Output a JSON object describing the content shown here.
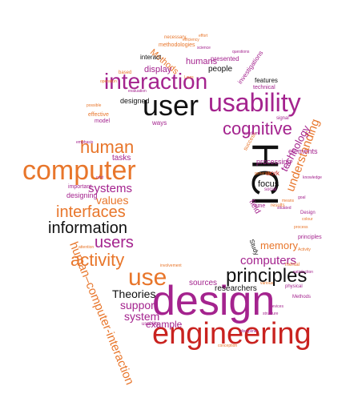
{
  "colors": {
    "purple": "#a4238e",
    "orange": "#e8762b",
    "red": "#c9221f",
    "black": "#111111",
    "light_orange": "#f0a370",
    "light_purple": "#c888bd",
    "gray": "#777777"
  },
  "words": [
    {
      "text": "design",
      "color": "purple"
    },
    {
      "text": "engineering",
      "color": "red"
    },
    {
      "text": "computer",
      "color": "orange"
    },
    {
      "text": "interaction",
      "color": "purple"
    },
    {
      "text": "user",
      "color": "black"
    },
    {
      "text": "usability",
      "color": "purple"
    },
    {
      "text": "HCI",
      "color": "black"
    },
    {
      "text": "cognitive",
      "color": "purple"
    },
    {
      "text": "human",
      "color": "orange"
    },
    {
      "text": "use",
      "color": "orange"
    },
    {
      "text": "principles",
      "color": "black"
    },
    {
      "text": "information",
      "color": "black"
    },
    {
      "text": "interfaces",
      "color": "orange"
    },
    {
      "text": "users",
      "color": "purple"
    },
    {
      "text": "activity",
      "color": "orange"
    },
    {
      "text": "human–computer-interaction",
      "color": "orange"
    },
    {
      "text": "systems",
      "color": "purple"
    },
    {
      "text": "values",
      "color": "orange"
    },
    {
      "text": "understanding",
      "color": "orange"
    },
    {
      "text": "computers",
      "color": "purple"
    },
    {
      "text": "memory",
      "color": "orange"
    },
    {
      "text": "technology",
      "color": "purple"
    },
    {
      "text": "Theories",
      "color": "black"
    },
    {
      "text": "support",
      "color": "purple"
    },
    {
      "text": "system",
      "color": "purple"
    },
    {
      "text": "example",
      "color": "purple"
    },
    {
      "text": "sources",
      "color": "purple"
    },
    {
      "text": "researchers",
      "color": "black"
    },
    {
      "text": "Methods",
      "color": "orange"
    },
    {
      "text": "humans",
      "color": "purple"
    },
    {
      "text": "display",
      "color": "purple"
    },
    {
      "text": "interact",
      "color": "black"
    },
    {
      "text": "presented",
      "color": "purple"
    },
    {
      "text": "people",
      "color": "black"
    },
    {
      "text": "investigations",
      "color": "purple"
    },
    {
      "text": "features",
      "color": "black"
    },
    {
      "text": "technical",
      "color": "purple"
    },
    {
      "text": "processing",
      "color": "purple"
    },
    {
      "text": "elements",
      "color": "purple"
    },
    {
      "text": "focus",
      "color": "black"
    },
    {
      "text": "work",
      "color": "red"
    },
    {
      "text": "field",
      "color": "purple"
    },
    {
      "text": "Study",
      "color": "black"
    },
    {
      "text": "designed",
      "color": "black"
    },
    {
      "text": "tasks",
      "color": "purple"
    },
    {
      "text": "ways",
      "color": "purple"
    },
    {
      "text": "designing",
      "color": "purple"
    },
    {
      "text": "methodologies",
      "color": "orange"
    },
    {
      "text": "based",
      "color": "orange"
    },
    {
      "text": "effective",
      "color": "orange"
    },
    {
      "text": "model",
      "color": "purple"
    },
    {
      "text": "important",
      "color": "purple"
    },
    {
      "text": "necessary",
      "color": "orange"
    },
    {
      "text": "signal",
      "color": "purple"
    },
    {
      "text": "time",
      "color": "purple"
    },
    {
      "text": "results",
      "color": "orange"
    },
    {
      "text": "social",
      "color": "purple"
    },
    {
      "text": "principles",
      "color": "purple"
    },
    {
      "text": "Design",
      "color": "purple"
    },
    {
      "text": "mental",
      "color": "orange"
    },
    {
      "text": "physical",
      "color": "purple"
    },
    {
      "text": "Methods",
      "color": "purple"
    },
    {
      "text": "satisfaction",
      "color": "purple"
    },
    {
      "text": "Activity",
      "color": "orange"
    },
    {
      "text": "usability",
      "color": "purple"
    },
    {
      "text": "possible",
      "color": "orange"
    },
    {
      "text": "conception",
      "color": "orange"
    },
    {
      "text": "operation",
      "color": "orange"
    },
    {
      "text": "success",
      "color": "orange"
    },
    {
      "text": "science",
      "color": "purple"
    },
    {
      "text": "medium",
      "color": "purple"
    },
    {
      "text": "generally",
      "color": "orange"
    },
    {
      "text": "attention",
      "color": "orange"
    },
    {
      "text": "devices",
      "color": "purple"
    },
    {
      "text": "means",
      "color": "orange"
    },
    {
      "text": "goal",
      "color": "purple"
    },
    {
      "text": "cost",
      "color": "purple"
    },
    {
      "text": "questions",
      "color": "purple"
    },
    {
      "text": "efficiency",
      "color": "orange"
    },
    {
      "text": "effort",
      "color": "orange"
    },
    {
      "text": "evaluation",
      "color": "purple"
    },
    {
      "text": "situated",
      "color": "purple"
    },
    {
      "text": "colour",
      "color": "orange"
    },
    {
      "text": "process",
      "color": "orange"
    },
    {
      "text": "structure",
      "color": "purple"
    },
    {
      "text": "emphasis",
      "color": "purple"
    },
    {
      "text": "involvement",
      "color": "orange"
    },
    {
      "text": "knowledge",
      "color": "purple"
    },
    {
      "text": "Laws",
      "color": "orange"
    },
    {
      "text": "discipline",
      "color": "purple"
    },
    {
      "text": "various",
      "color": "orange"
    }
  ]
}
